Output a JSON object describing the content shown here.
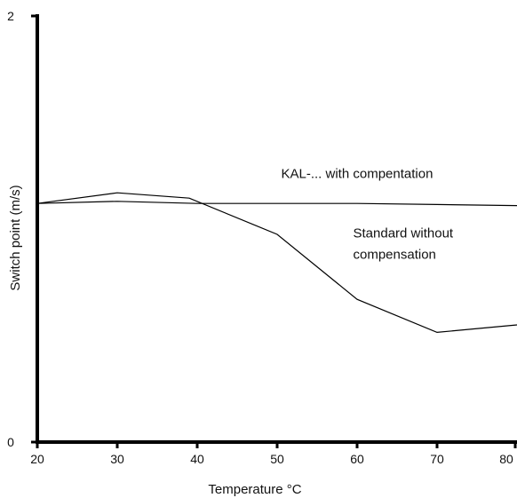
{
  "chart_data": {
    "type": "line",
    "xlabel": "Temperature °C",
    "ylabel": "Switch point (m/s)",
    "xlim": [
      20,
      80
    ],
    "ylim": [
      0,
      2
    ],
    "x_ticks": [
      "20",
      "30",
      "40",
      "50",
      "60",
      "70",
      "80"
    ],
    "y_ticks": [
      "0",
      "2"
    ],
    "grid": false,
    "series": [
      {
        "name": "",
        "x": [
          20,
          30,
          40,
          50,
          60,
          70,
          80
        ],
        "y": [
          1.12,
          1.13,
          1.12,
          1.12,
          1.12,
          1.115,
          1.11
        ]
      },
      {
        "name": "",
        "x": [
          20,
          30,
          39,
          50,
          60,
          70,
          80
        ],
        "y": [
          1.12,
          1.17,
          1.145,
          0.975,
          0.67,
          0.515,
          0.55
        ]
      }
    ],
    "annotations": [
      {
        "text": "KAL-... with compentation",
        "x": 50.5,
        "y": 1.24
      },
      {
        "text": "Standard without",
        "x": 59.5,
        "y": 0.96
      },
      {
        "text": "compensation",
        "x": 59.5,
        "y": 0.86
      }
    ]
  }
}
